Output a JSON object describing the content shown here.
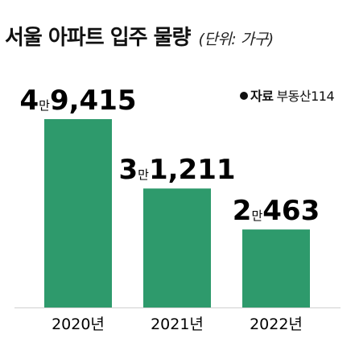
{
  "chart_data": {
    "type": "bar",
    "title": "서울 아파트 입주 물량",
    "unit": "(단위: 가구)",
    "source_label": "자료",
    "source_name": "부동산114",
    "categories": [
      "2020년",
      "2021년",
      "2022년"
    ],
    "values": [
      49415,
      31211,
      20463
    ],
    "value_labels": [
      {
        "man": "4",
        "man_unit": "만",
        "rest": "9,415"
      },
      {
        "man": "3",
        "man_unit": "만",
        "rest": "1,211"
      },
      {
        "man": "2",
        "man_unit": "만",
        "rest": "463"
      }
    ],
    "bar_color": "#2e9a6c",
    "ylim": [
      0,
      50000
    ],
    "grid": false,
    "legend": "none"
  }
}
